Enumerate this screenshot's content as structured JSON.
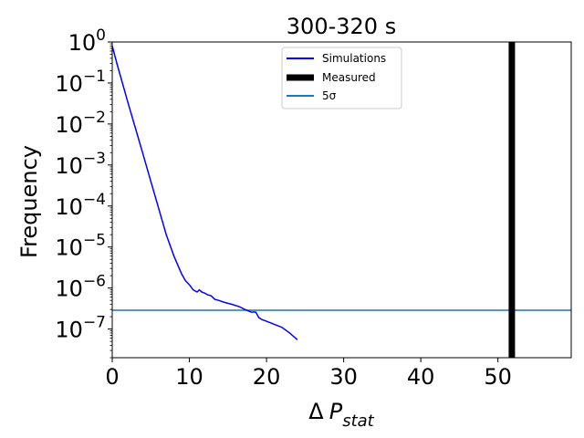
{
  "chart_data": {
    "type": "line",
    "title": "300-320 s",
    "xlabel_prefix": "Δ",
    "xlabel_main": "P",
    "xlabel_sub": "stat",
    "ylabel": "Frequency",
    "xlim": [
      0,
      59.5
    ],
    "ylim": [
      2e-08,
      1
    ],
    "yscale": "log",
    "xticks": [
      0,
      10,
      20,
      30,
      40,
      50
    ],
    "xtick_labels": [
      "0",
      "10",
      "20",
      "30",
      "40",
      "50"
    ],
    "yticks": [
      {
        "base": "10",
        "exp": "0",
        "value": 1
      },
      {
        "base": "10",
        "exp": "−1",
        "value": 0.1
      },
      {
        "base": "10",
        "exp": "−2",
        "value": 0.01
      },
      {
        "base": "10",
        "exp": "−3",
        "value": 0.001
      },
      {
        "base": "10",
        "exp": "−4",
        "value": 0.0001
      },
      {
        "base": "10",
        "exp": "−5",
        "value": 1e-05
      },
      {
        "base": "10",
        "exp": "−6",
        "value": 1e-06
      },
      {
        "base": "10",
        "exp": "−7",
        "value": 1e-07
      }
    ],
    "series": [
      {
        "name": "Simulations",
        "color": "#0000ff",
        "x": [
          0,
          0.6,
          1.2,
          2,
          3,
          4,
          5,
          6,
          7,
          8,
          9,
          9.5,
          10,
          10.5,
          11,
          11.3,
          11.6,
          12,
          12.4,
          12.8,
          13.3,
          13.8,
          14.5,
          15.5,
          16.5,
          17.2,
          18,
          18.6,
          19,
          19.4,
          20,
          21,
          22,
          23,
          24
        ],
        "y": [
          0.8,
          0.3,
          0.12,
          0.035,
          0.008,
          0.0018,
          0.0004,
          9e-05,
          2e-05,
          6e-06,
          2.2e-06,
          1.5e-06,
          1.2e-06,
          9e-07,
          8e-07,
          9e-07,
          8e-07,
          7.5e-07,
          6.8e-07,
          6.5e-07,
          5.3e-07,
          5e-07,
          4.5e-07,
          4e-07,
          3.5e-07,
          3e-07,
          2.6e-07,
          2.6e-07,
          1.9e-07,
          1.7e-07,
          1.55e-07,
          1.3e-07,
          1.1e-07,
          8e-08,
          5.5e-08
        ]
      },
      {
        "name": "Measured",
        "color": "#000000",
        "x_value": 51.8
      },
      {
        "name": "5σ",
        "color": "#1f77b4",
        "y_value": 2.87e-07
      }
    ],
    "legend": {
      "placement": "top-center",
      "entries": [
        "Simulations",
        "Measured",
        "5σ"
      ]
    },
    "grid": false
  }
}
